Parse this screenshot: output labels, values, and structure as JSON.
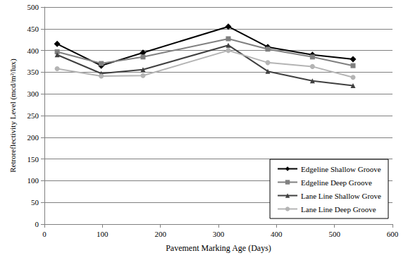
{
  "chart_data": {
    "type": "line",
    "x_label": "Pavement Marking Age (Days)",
    "y_label": "Retroreflectivity Level (mcd/m²/lux)",
    "x": [
      22,
      98,
      170,
      317,
      385,
      462,
      532
    ],
    "series": [
      {
        "name": "Edgeline Shallow Groove",
        "color": "#000000",
        "marker": "diamond",
        "values": [
          415,
          365,
          395,
          455,
          408,
          390,
          380
        ]
      },
      {
        "name": "Edgeline Deep Groove",
        "color": "#808080",
        "marker": "square",
        "values": [
          397,
          370,
          385,
          427,
          403,
          385,
          365
        ]
      },
      {
        "name": "Lane Line Shallow Grove",
        "color": "#404040",
        "marker": "triangle",
        "values": [
          390,
          347,
          356,
          412,
          352,
          330,
          319
        ]
      },
      {
        "name": "Lane Line Deep Groove",
        "color": "#b4b4b4",
        "marker": "circle",
        "values": [
          358,
          341,
          342,
          400,
          372,
          363,
          338
        ]
      }
    ],
    "xlim": [
      0,
      600
    ],
    "xticks": [
      0,
      100,
      200,
      300,
      400,
      500,
      600
    ],
    "ylim": [
      0,
      500
    ],
    "yticks": [
      0,
      50,
      100,
      150,
      200,
      250,
      300,
      350,
      400,
      450,
      500
    ],
    "grid": true,
    "legend": "lower right"
  }
}
